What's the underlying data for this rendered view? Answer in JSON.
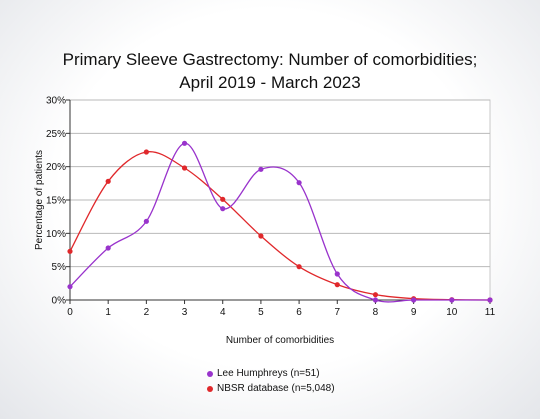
{
  "chart_data": {
    "type": "line",
    "title": "Primary Sleeve Gastrectomy: Number of comorbidities;",
    "subtitle": "April 2019 - March 2023",
    "xlabel": "Number of comorbidities",
    "ylabel": "Percentage of patients",
    "x": [
      0,
      1,
      2,
      3,
      4,
      5,
      6,
      7,
      8,
      9,
      10,
      11
    ],
    "xlim": [
      0,
      11
    ],
    "ylim": [
      0,
      30
    ],
    "yticks": [
      0,
      5,
      10,
      15,
      20,
      25,
      30
    ],
    "ytick_labels": [
      "0%",
      "5%",
      "10%",
      "15%",
      "20%",
      "25%",
      "30%"
    ],
    "xtick_labels": [
      "0",
      "1",
      "2",
      "3",
      "4",
      "5",
      "6",
      "7",
      "8",
      "9",
      "10",
      "11"
    ],
    "grid": "horizontal",
    "legend_position": "bottom",
    "series": [
      {
        "name": "Lee Humphreys (n=51)",
        "color": "#9933cc",
        "values": [
          2.0,
          7.8,
          11.8,
          23.5,
          13.7,
          19.6,
          17.6,
          3.9,
          0.0,
          0.0,
          0.0,
          0.0
        ]
      },
      {
        "name": "NBSR database (n=5,048)",
        "color": "#e0282b",
        "values": [
          7.3,
          17.8,
          22.2,
          19.8,
          15.1,
          9.6,
          5.0,
          2.3,
          0.8,
          0.2,
          0.05,
          0.0
        ]
      }
    ]
  }
}
